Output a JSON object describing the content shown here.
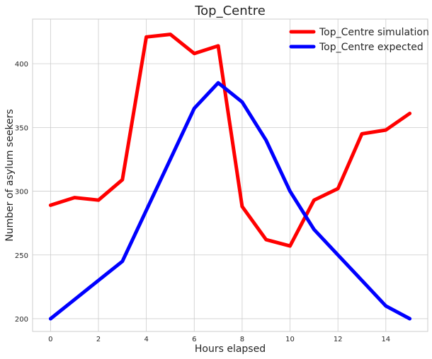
{
  "chart_data": {
    "type": "line",
    "title": "Top_Centre",
    "xlabel": "Hours elapsed",
    "ylabel": "Number of asylum seekers",
    "xlim": [
      -0.75,
      15.75
    ],
    "ylim": [
      190,
      435
    ],
    "x_ticks": [
      0,
      2,
      4,
      6,
      8,
      10,
      12,
      14
    ],
    "y_ticks": [
      200,
      250,
      300,
      350,
      400
    ],
    "grid": true,
    "legend_position": "top-right",
    "x": [
      0,
      1,
      2,
      3,
      4,
      5,
      6,
      7,
      8,
      9,
      10,
      11,
      12,
      13,
      14,
      15
    ],
    "series": [
      {
        "name": "Top_Centre simulation",
        "color": "#ff0000",
        "values": [
          289,
          295,
          293,
          309,
          421,
          423,
          408,
          414,
          288,
          262,
          257,
          293,
          302,
          345,
          348,
          361
        ]
      },
      {
        "name": "Top_Centre expected",
        "color": "#0000ff",
        "values": [
          200,
          215,
          230,
          245,
          285,
          325,
          365,
          385,
          370,
          340,
          300,
          270,
          250,
          230,
          210,
          200
        ]
      }
    ]
  }
}
